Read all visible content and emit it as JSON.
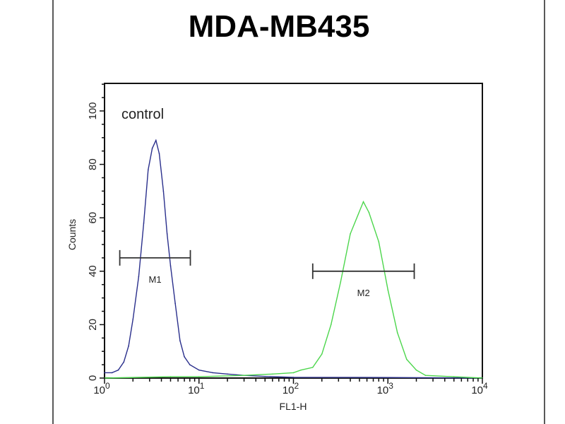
{
  "chart_data": {
    "type": "line",
    "title": "MDA-MB435",
    "xlabel": "FL1-H",
    "ylabel": "Counts",
    "x_scale": "log",
    "xlim": [
      1,
      10000
    ],
    "ylim": [
      0,
      110
    ],
    "grid": false,
    "annotation": "control",
    "x_ticks": [
      {
        "base": "10",
        "exp": "0",
        "value": 1
      },
      {
        "base": "10",
        "exp": "1",
        "value": 10
      },
      {
        "base": "10",
        "exp": "2",
        "value": 100
      },
      {
        "base": "10",
        "exp": "3",
        "value": 1000
      },
      {
        "base": "10",
        "exp": "4",
        "value": 10000
      }
    ],
    "y_ticks": [
      0,
      20,
      40,
      60,
      80,
      100
    ],
    "series": [
      {
        "color": "#2a2f8c",
        "points": [
          [
            1,
            2
          ],
          [
            1.2,
            2
          ],
          [
            1.4,
            3
          ],
          [
            1.6,
            6
          ],
          [
            1.8,
            12
          ],
          [
            2.0,
            22
          ],
          [
            2.3,
            38
          ],
          [
            2.6,
            58
          ],
          [
            2.9,
            78
          ],
          [
            3.2,
            86
          ],
          [
            3.5,
            89
          ],
          [
            3.8,
            84
          ],
          [
            4.2,
            70
          ],
          [
            4.6,
            54
          ],
          [
            5.0,
            42
          ],
          [
            5.6,
            28
          ],
          [
            6.3,
            14
          ],
          [
            7.0,
            8
          ],
          [
            8.0,
            5
          ],
          [
            10,
            3
          ],
          [
            14,
            2
          ],
          [
            20,
            1.5
          ],
          [
            30,
            1
          ],
          [
            50,
            0.6
          ],
          [
            100,
            0.3
          ],
          [
            1000,
            0.2
          ],
          [
            10000,
            0
          ]
        ]
      },
      {
        "color": "#4cd64c",
        "points": [
          [
            1,
            0
          ],
          [
            5,
            0.5
          ],
          [
            10,
            0.5
          ],
          [
            30,
            1
          ],
          [
            60,
            1.5
          ],
          [
            100,
            2
          ],
          [
            120,
            3
          ],
          [
            160,
            4
          ],
          [
            200,
            9
          ],
          [
            250,
            20
          ],
          [
            316,
            36
          ],
          [
            400,
            54
          ],
          [
            550,
            66
          ],
          [
            630,
            62
          ],
          [
            800,
            51
          ],
          [
            1000,
            33
          ],
          [
            1260,
            17
          ],
          [
            1580,
            7
          ],
          [
            2000,
            3
          ],
          [
            2500,
            1
          ],
          [
            5000,
            0.5
          ],
          [
            10000,
            0
          ]
        ]
      }
    ],
    "markers": [
      {
        "label": "M1",
        "x_start": 1.45,
        "x_end": 8.1,
        "y": 45
      },
      {
        "label": "M2",
        "x_start": 160,
        "x_end": 1900,
        "y": 40
      }
    ]
  }
}
